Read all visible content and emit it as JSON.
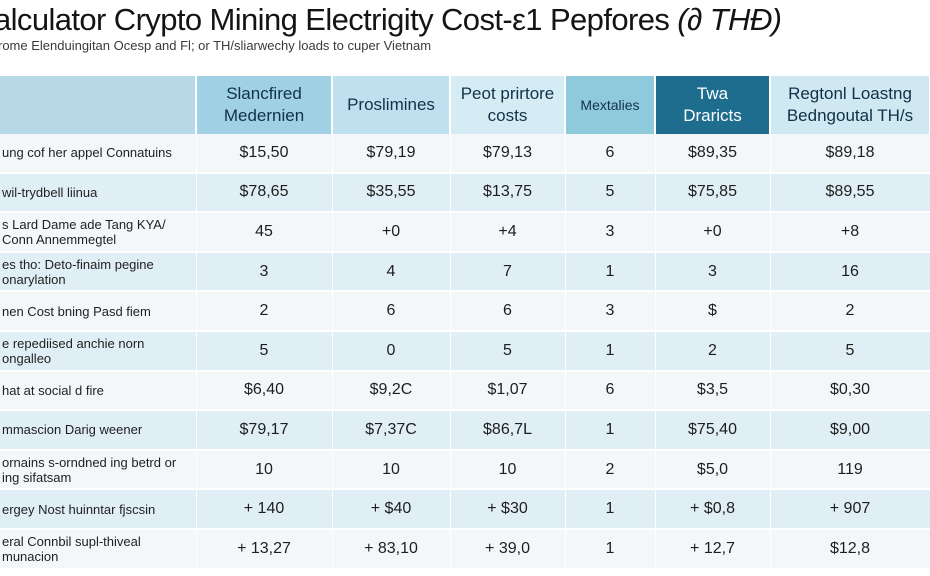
{
  "title": {
    "main": "alculator Crypto Mining Electrigity Cost-ε1 Pepfores",
    "suffix": "(∂ THƉ)"
  },
  "subtitle": "rome Elenduingitan Ocesp and Fl; or TH/sliarwechy loads to cuper Vietnam",
  "table": {
    "columns": [
      {
        "lines": [
          "",
          ""
        ]
      },
      {
        "lines": [
          "Slancfired",
          "Medernien"
        ]
      },
      {
        "lines": [
          "Proslimines"
        ]
      },
      {
        "lines": [
          "Peot prirtore",
          "costs"
        ]
      },
      {
        "lines": [
          "Mextalies"
        ]
      },
      {
        "lines": [
          "Twa",
          "Draricts"
        ]
      },
      {
        "lines": [
          "Regtonl Loastng",
          "Bedngoutal TH/s"
        ]
      }
    ],
    "rows": [
      {
        "label": [
          "ung cof her appel Connatuins"
        ],
        "values": [
          "$15,50",
          "$79,19",
          "$79,13",
          "6",
          "$89,35",
          "$89,18"
        ]
      },
      {
        "label": [
          "wil-trydbell liinua"
        ],
        "values": [
          "$78,65",
          "$35,55",
          "$13,75",
          "5",
          "$75,85",
          "$89,55"
        ]
      },
      {
        "label": [
          "s Lard Dame ade Tang KYA/",
          "Conn Annemmegtel"
        ],
        "values": [
          "45",
          "+0",
          "+4",
          "3",
          "+0",
          "+8"
        ]
      },
      {
        "label": [
          "es tho: Deto-finaim pegine",
          "onarylation"
        ],
        "values": [
          "3",
          "4",
          "7",
          "1",
          "3",
          "16"
        ]
      },
      {
        "label": [
          "nen Cost bning Pasd fiem"
        ],
        "values": [
          "2",
          "6",
          "6",
          "3",
          "$",
          "2"
        ]
      },
      {
        "label": [
          "e repediised anchie norn",
          "ongalleo"
        ],
        "values": [
          "5",
          "0",
          "5",
          "1",
          "2",
          "5"
        ]
      },
      {
        "label": [
          "hat at social d fire"
        ],
        "values": [
          "$6,40",
          "$9,2C",
          "$1,07",
          "6",
          "$3,5",
          "$0,30"
        ]
      },
      {
        "label": [
          "mmascion Darig weener"
        ],
        "values": [
          "$79,17",
          "$7,37C",
          "$86,7L",
          "1",
          "$75,40",
          "$9,00"
        ]
      },
      {
        "label": [
          "ornains s-orndned ing betrd or",
          "ing sifatsam"
        ],
        "values": [
          "10",
          "10",
          "10",
          "2",
          "$5,0",
          "119"
        ]
      },
      {
        "label": [
          "ergey Nost huinntar fjscsin"
        ],
        "values": [
          "+ 140",
          "+ $40",
          "+ $30",
          "1",
          "+ $0,8",
          "+ 907"
        ]
      },
      {
        "label": [
          "eral Connbil supl-thiveal",
          "munacion"
        ],
        "values": [
          "+ 13,27",
          "+ 83,10",
          "+ 39,0",
          "1",
          "+ 12,7",
          "$12,8"
        ]
      }
    ]
  }
}
